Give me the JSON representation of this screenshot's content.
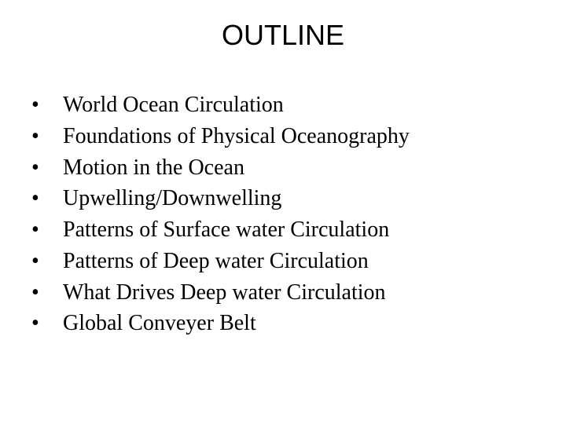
{
  "slide": {
    "title": "OUTLINE",
    "title_font": "Arial",
    "title_fontsize": 36,
    "body_font": "Times New Roman",
    "body_fontsize": 28,
    "background_color": "#ffffff",
    "text_color": "#000000",
    "bullet_char": "•",
    "items": [
      "World Ocean Circulation",
      "Foundations of Physical Oceanography",
      "Motion in the Ocean",
      "Upwelling/Downwelling",
      "Patterns of Surface water Circulation",
      "Patterns of Deep water Circulation",
      "What Drives Deep water Circulation",
      "Global Conveyer Belt"
    ]
  }
}
